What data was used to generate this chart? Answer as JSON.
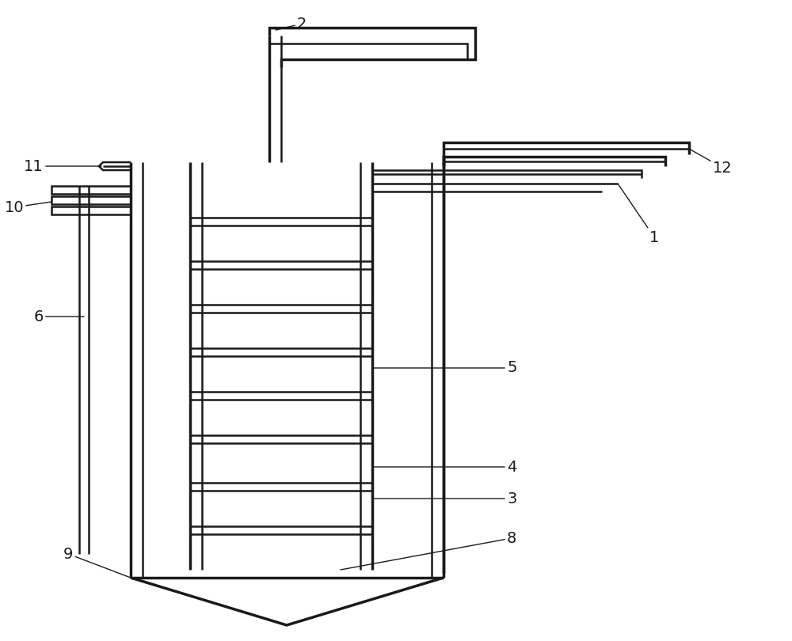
{
  "bg_color": "#ffffff",
  "line_color": "#1a1a1a",
  "lw": 1.8,
  "lw2": 2.5,
  "figsize": [
    10.0,
    8.1
  ],
  "dpi": 100
}
